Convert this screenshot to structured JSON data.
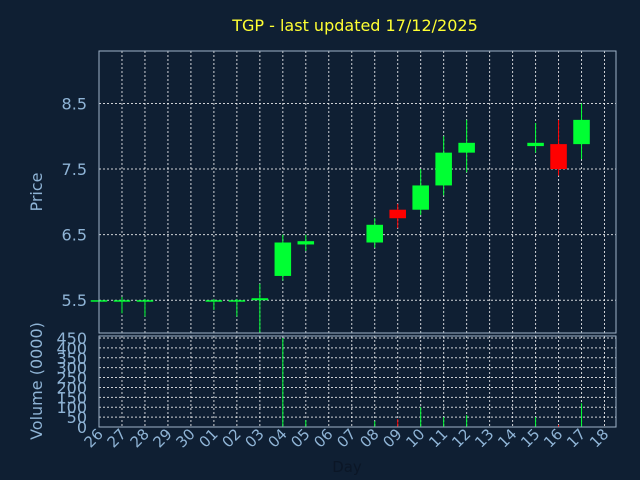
{
  "chart_data": {
    "type": "candlestick",
    "title": "TGP - last updated 17/12/2025",
    "xlabel": "Day",
    "price_panel": {
      "ylabel": "Price",
      "ylim": [
        5.0,
        9.3
      ],
      "ticks": [
        5.5,
        6.5,
        7.5,
        8.5
      ],
      "tick_labels": [
        "5.5",
        "6.5",
        "7.5",
        "8.5"
      ]
    },
    "volume_panel": {
      "ylabel": "Volume (0000)",
      "ylim": [
        0,
        450
      ],
      "ticks": [
        0,
        50,
        100,
        150,
        200,
        250,
        300,
        350,
        400,
        450
      ],
      "tick_labels": [
        "0",
        "50",
        "100",
        "150",
        "200",
        "250",
        "300",
        "350",
        "400",
        "450"
      ]
    },
    "categories": [
      "26",
      "27",
      "28",
      "29",
      "30",
      "01",
      "02",
      "03",
      "04",
      "05",
      "06",
      "07",
      "08",
      "09",
      "10",
      "11",
      "12",
      "13",
      "14",
      "15",
      "16",
      "17",
      "18"
    ],
    "candles": [
      {
        "day": "26",
        "open": 5.5,
        "high": 5.52,
        "low": 5.48,
        "close": 5.5,
        "volume": 1
      },
      {
        "day": "27",
        "open": 5.48,
        "high": 5.55,
        "low": 5.3,
        "close": 5.5,
        "volume": 1
      },
      {
        "day": "28",
        "open": 5.48,
        "high": 5.52,
        "low": 5.25,
        "close": 5.5,
        "volume": 1
      },
      {
        "day": "01",
        "open": 5.48,
        "high": 5.52,
        "low": 5.35,
        "close": 5.5,
        "volume": 1
      },
      {
        "day": "02",
        "open": 5.48,
        "high": 5.52,
        "low": 5.25,
        "close": 5.5,
        "volume": 1
      },
      {
        "day": "03",
        "open": 5.5,
        "high": 5.75,
        "low": 5.0,
        "close": 5.53,
        "volume": 2
      },
      {
        "day": "04",
        "open": 5.87,
        "high": 6.5,
        "low": 5.8,
        "close": 6.38,
        "volume": 450
      },
      {
        "day": "05",
        "open": 6.35,
        "high": 6.5,
        "low": 6.25,
        "close": 6.4,
        "volume": 35
      },
      {
        "day": "08",
        "open": 6.38,
        "high": 6.75,
        "low": 6.3,
        "close": 6.65,
        "volume": 30
      },
      {
        "day": "09",
        "open": 6.88,
        "high": 6.97,
        "low": 6.6,
        "close": 6.75,
        "volume": 40
      },
      {
        "day": "10",
        "open": 6.88,
        "high": 7.5,
        "low": 6.8,
        "close": 7.25,
        "volume": 100
      },
      {
        "day": "11",
        "open": 7.25,
        "high": 8.0,
        "low": 7.1,
        "close": 7.75,
        "volume": 50
      },
      {
        "day": "12",
        "open": 7.75,
        "high": 8.25,
        "low": 7.45,
        "close": 7.9,
        "volume": 60
      },
      {
        "day": "15",
        "open": 7.85,
        "high": 8.2,
        "low": 7.75,
        "close": 7.9,
        "volume": 50
      },
      {
        "day": "16",
        "open": 7.88,
        "high": 8.25,
        "low": 7.4,
        "close": 7.5,
        "volume": 10
      },
      {
        "day": "17",
        "open": 7.88,
        "high": 8.5,
        "low": 7.65,
        "close": 8.25,
        "volume": 120
      }
    ],
    "grid": true,
    "colors": {
      "background": "#0f1f33",
      "up": "#00ff33",
      "down": "#ff0000",
      "grid": "#ffffff",
      "axis": "#8fb4d6",
      "title": "#ffff33"
    }
  }
}
